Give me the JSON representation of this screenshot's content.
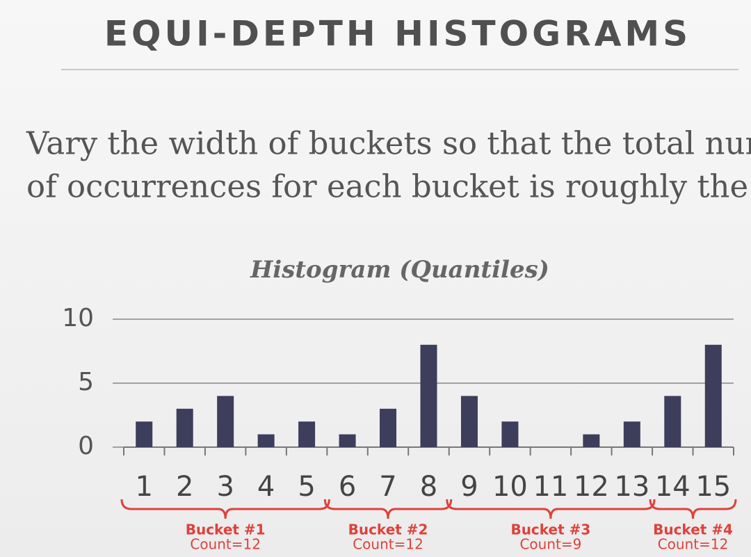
{
  "slide": {
    "title": "EQUI-DEPTH HISTOGRAMS",
    "text": [
      "Vary the width of buckets so that the total number",
      "of occurrences for each bucket is roughly the same"
    ]
  },
  "chart_data": {
    "type": "bar",
    "title": "Histogram (Quantiles)",
    "categories": [
      "1",
      "2",
      "3",
      "4",
      "5",
      "6",
      "7",
      "8",
      "9",
      "10",
      "11",
      "12",
      "13",
      "14",
      "15"
    ],
    "values": [
      2,
      3,
      4,
      1,
      2,
      1,
      3,
      8,
      4,
      2,
      0,
      1,
      2,
      4,
      8
    ],
    "color": "#3d3d5c",
    "ylim": [
      0,
      10
    ],
    "yticks": [
      0,
      5,
      10
    ],
    "grid": true,
    "buckets": [
      {
        "label": "Bucket #1",
        "count": "Count=12"
      },
      {
        "label": "Bucket #2",
        "count": "Count=12"
      },
      {
        "label": "Bucket #3",
        "count": "Count=9"
      },
      {
        "label": "Bucket #4",
        "count": "Count=12"
      }
    ],
    "bucket_color": "#e0403a"
  }
}
